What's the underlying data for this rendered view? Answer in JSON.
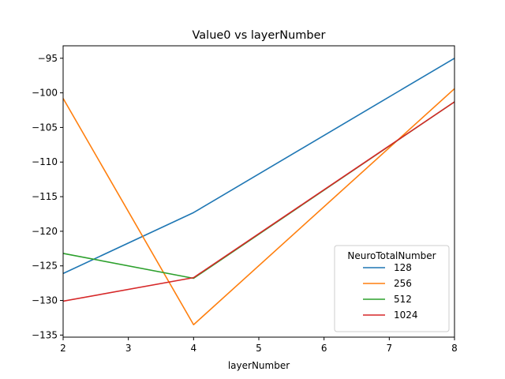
{
  "chart_data": {
    "type": "line",
    "title": "Value0 vs layerNumber",
    "xlabel": "layerNumber",
    "ylabel": "",
    "xlim": [
      2,
      8
    ],
    "ylim": [
      -135.3,
      -93.2
    ],
    "xticks": [
      2,
      3,
      4,
      5,
      6,
      7,
      8
    ],
    "yticks": [
      -95,
      -100,
      -105,
      -110,
      -115,
      -120,
      -125,
      -130,
      -135
    ],
    "xtick_labels": [
      "2",
      "3",
      "4",
      "5",
      "6",
      "7",
      "8"
    ],
    "ytick_labels": [
      "−95",
      "−100",
      "−105",
      "−110",
      "−115",
      "−120",
      "−125",
      "−130",
      "−135"
    ],
    "grid": false,
    "legend": {
      "title": "NeuroTotalNumber",
      "placement": "lower-right"
    },
    "series": [
      {
        "name": "128",
        "color": "#1f77b4",
        "x": [
          2,
          4,
          8
        ],
        "y": [
          -126.1,
          -117.3,
          -95.0
        ]
      },
      {
        "name": "256",
        "color": "#ff7f0e",
        "x": [
          2,
          4,
          8
        ],
        "y": [
          -100.8,
          -133.5,
          -99.4
        ]
      },
      {
        "name": "512",
        "color": "#2ca02c",
        "x": [
          2,
          4,
          8
        ],
        "y": [
          -123.2,
          -126.8,
          -101.3
        ]
      },
      {
        "name": "1024",
        "color": "#d62728",
        "x": [
          2,
          4,
          8
        ],
        "y": [
          -130.1,
          -126.7,
          -101.3
        ]
      }
    ]
  }
}
